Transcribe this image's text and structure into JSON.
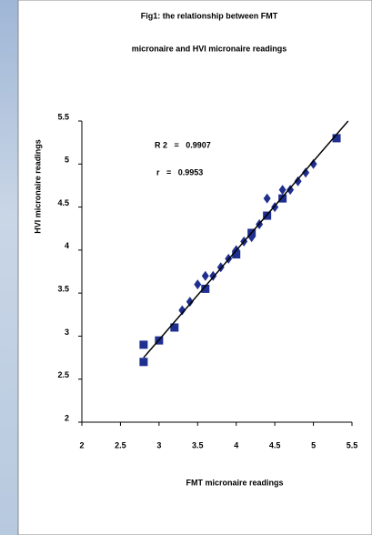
{
  "chart_data": {
    "type": "scatter",
    "title": "Fig1: the relationship between FMT",
    "subtitle": "micronaire and HVI micronaire readings",
    "xlabel": "FMT micronaire readings",
    "ylabel": "HVI micronaire readings",
    "annotations": [
      "R 2   =   0.9907",
      "r   =   0.9953"
    ],
    "x": [
      2.8,
      2.8,
      3.0,
      3.2,
      3.3,
      3.4,
      3.5,
      3.6,
      3.6,
      3.7,
      3.8,
      3.9,
      4.0,
      4.0,
      4.1,
      4.2,
      4.2,
      4.3,
      4.4,
      4.4,
      4.5,
      4.6,
      4.6,
      4.7,
      4.8,
      4.9,
      5.0,
      5.3
    ],
    "values": [
      2.9,
      2.7,
      2.95,
      3.1,
      3.3,
      3.4,
      3.6,
      3.55,
      3.7,
      3.7,
      3.8,
      3.9,
      4.0,
      3.95,
      4.1,
      4.2,
      4.15,
      4.3,
      4.4,
      4.6,
      4.5,
      4.6,
      4.7,
      4.7,
      4.8,
      4.9,
      5.0,
      5.3
    ],
    "markers": [
      "square",
      "square",
      "square",
      "square",
      "diamond",
      "diamond",
      "diamond",
      "square",
      "diamond",
      "diamond",
      "diamond",
      "diamond",
      "diamond",
      "square",
      "diamond",
      "square",
      "diamond",
      "diamond",
      "square",
      "diamond",
      "diamond",
      "square",
      "diamond",
      "diamond",
      "diamond",
      "diamond",
      "diamond",
      "square"
    ],
    "color": "#1f2f8f",
    "trendline": {
      "x": [
        2.8,
        5.45
      ],
      "y": [
        2.75,
        5.5
      ],
      "color": "#000000"
    },
    "xlim": [
      2,
      5.5
    ],
    "ylim": [
      2,
      5.5
    ],
    "xticks": [
      2,
      2.5,
      3,
      3.5,
      4,
      4.5,
      5,
      5.5
    ],
    "yticks": [
      2,
      2.5,
      3,
      3.5,
      4,
      4.5,
      5,
      5.5
    ]
  }
}
